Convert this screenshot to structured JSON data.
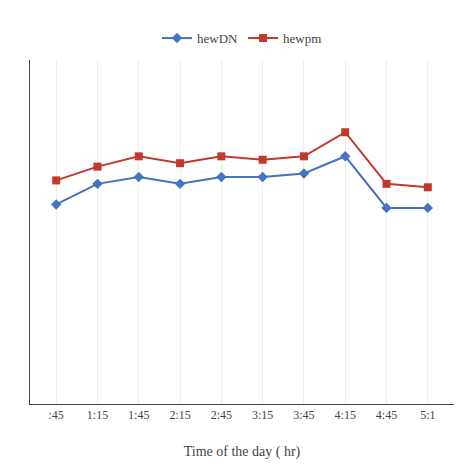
{
  "chart_data": {
    "type": "line",
    "xlabel": "Time of the day ( hr)",
    "categories": [
      ":45",
      "1:15",
      "1:45",
      "2:15",
      "2:45",
      "3:15",
      "3:45",
      "4:15",
      "4:45",
      "5:1"
    ],
    "series": [
      {
        "name": "hewDN",
        "color": "#4472C4",
        "marker": "diamond",
        "values": [
          0.58,
          0.64,
          0.66,
          0.64,
          0.66,
          0.66,
          0.67,
          0.72,
          0.57,
          0.57
        ]
      },
      {
        "name": "hewpm",
        "color": "#C0392B",
        "marker": "square",
        "values": [
          0.65,
          0.69,
          0.72,
          0.7,
          0.72,
          0.71,
          0.72,
          0.79,
          0.64,
          0.63
        ]
      }
    ],
    "ylim": [
      0.0,
      1.0
    ],
    "grid": "x",
    "legend": "top",
    "tick_labels": "x"
  }
}
